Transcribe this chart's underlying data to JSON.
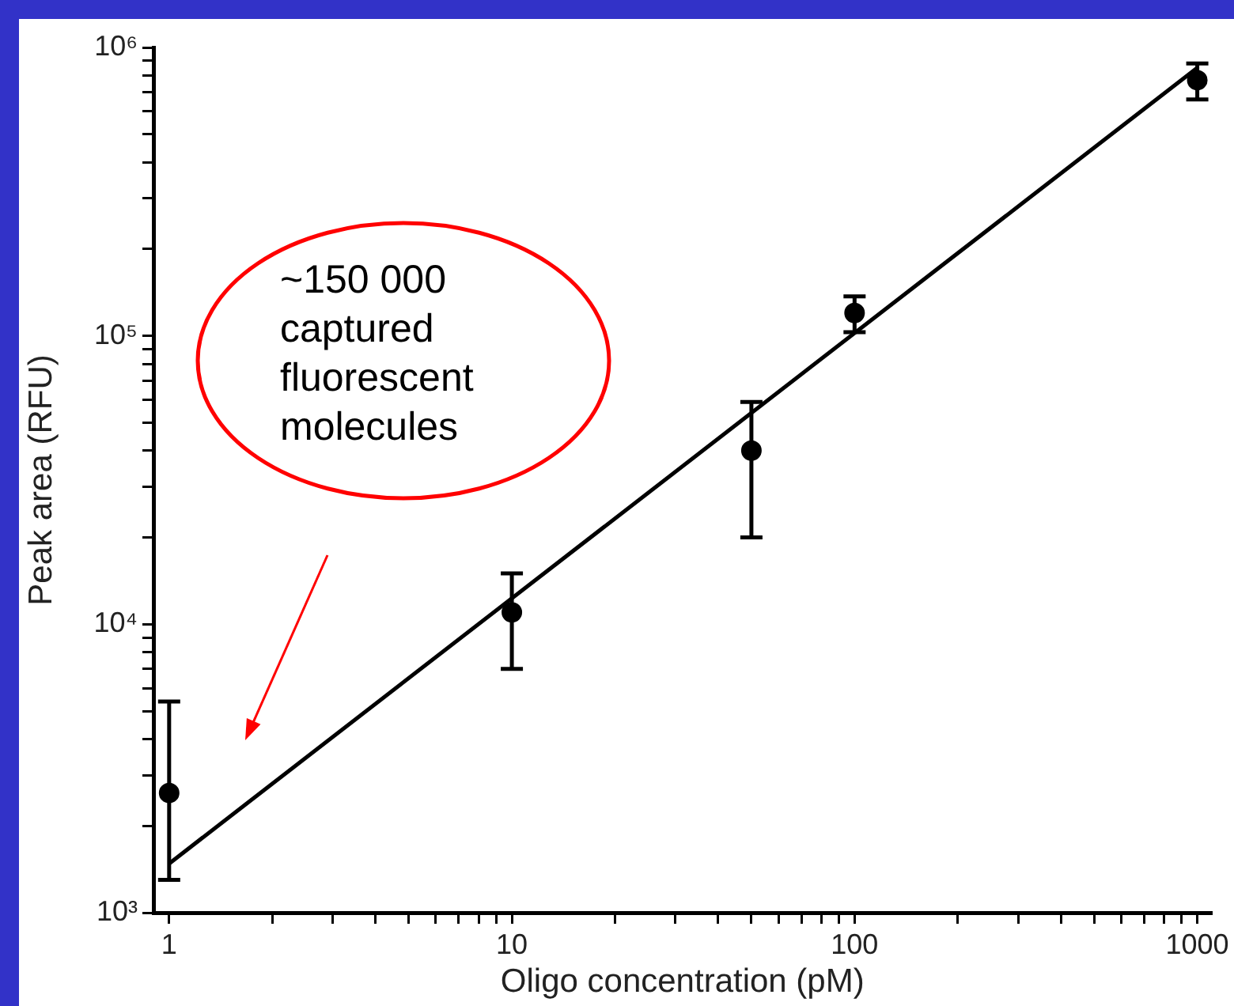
{
  "chart_data": {
    "type": "scatter",
    "xlabel": "Oligo concentration (pM)",
    "ylabel": "Peak area (RFU)",
    "log": "xy",
    "marker": "circle",
    "xlim": [
      0.9,
      1100
    ],
    "ylim": [
      1000,
      1000000
    ],
    "xticks": [
      1,
      {
        "value": 2,
        "label": null
      },
      {
        "value": 3,
        "label": null
      },
      {
        "value": 4,
        "label": null
      },
      {
        "value": 5,
        "label": null
      },
      {
        "value": 6,
        "label": null
      },
      {
        "value": 7,
        "label": null
      },
      {
        "value": 8,
        "label": null
      },
      {
        "value": 9,
        "label": null
      },
      10,
      {
        "value": 20,
        "label": null
      },
      {
        "value": 30,
        "label": null
      },
      {
        "value": 40,
        "label": null
      },
      {
        "value": 50,
        "label": null
      },
      {
        "value": 60,
        "label": null
      },
      {
        "value": 70,
        "label": null
      },
      {
        "value": 80,
        "label": null
      },
      {
        "value": 90,
        "label": null
      },
      100,
      {
        "value": 200,
        "label": null
      },
      {
        "value": 300,
        "label": null
      },
      {
        "value": 400,
        "label": null
      },
      {
        "value": 500,
        "label": null
      },
      {
        "value": 600,
        "label": null
      },
      {
        "value": 700,
        "label": null
      },
      {
        "value": 800,
        "label": null
      },
      {
        "value": 900,
        "label": null
      },
      1000
    ],
    "yticks": [
      {
        "value": 1000,
        "label": "10³"
      },
      {
        "value": 2000,
        "label": null
      },
      {
        "value": 3000,
        "label": null
      },
      {
        "value": 4000,
        "label": null
      },
      {
        "value": 5000,
        "label": null
      },
      {
        "value": 6000,
        "label": null
      },
      {
        "value": 7000,
        "label": null
      },
      {
        "value": 8000,
        "label": null
      },
      {
        "value": 9000,
        "label": null
      },
      {
        "value": 10000,
        "label": "10⁴"
      },
      {
        "value": 20000,
        "label": null
      },
      {
        "value": 30000,
        "label": null
      },
      {
        "value": 40000,
        "label": null
      },
      {
        "value": 50000,
        "label": null
      },
      {
        "value": 60000,
        "label": null
      },
      {
        "value": 70000,
        "label": null
      },
      {
        "value": 80000,
        "label": null
      },
      {
        "value": 90000,
        "label": null
      },
      {
        "value": 100000,
        "label": "10⁵"
      },
      {
        "value": 200000,
        "label": null
      },
      {
        "value": 300000,
        "label": null
      },
      {
        "value": 400000,
        "label": null
      },
      {
        "value": 500000,
        "label": null
      },
      {
        "value": 600000,
        "label": null
      },
      {
        "value": 700000,
        "label": null
      },
      {
        "value": 800000,
        "label": null
      },
      {
        "value": 900000,
        "label": null
      },
      {
        "value": 1000000,
        "label": "10⁶"
      }
    ],
    "series": [
      {
        "color": "#000000",
        "x": [
          1,
          10,
          50,
          100,
          1000
        ],
        "values": [
          2600,
          11000,
          40000,
          120000,
          770000
        ],
        "errors": [
          [
            1300,
            5400
          ],
          [
            7000,
            15000
          ],
          [
            20000,
            59000
          ],
          [
            103000,
            137000
          ],
          [
            660000,
            880000
          ]
        ]
      },
      {
        "type": "line",
        "color": "#000000",
        "marker": "none",
        "x": [
          1,
          1000
        ],
        "values": [
          1480,
          850000
        ]
      }
    ],
    "annotations": [
      "~150 000 captured fluorescent molecules"
    ]
  }
}
